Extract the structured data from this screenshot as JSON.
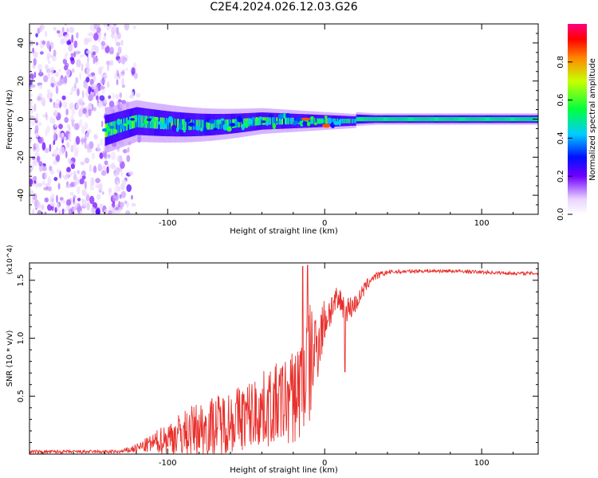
{
  "title": "C2E4.2024.026.12.03.G26",
  "chart_data": [
    {
      "type": "heatmap",
      "title": "",
      "xlabel": "Height of straight line (km)",
      "ylabel": "Frequency (Hz)",
      "xlim": [
        -188,
        136
      ],
      "ylim": [
        -50,
        50
      ],
      "x_ticks": [
        -100,
        0,
        100
      ],
      "x_tick_labels": [
        "-100",
        "0",
        "100"
      ],
      "y_ticks": [
        -40,
        -20,
        0,
        20,
        40
      ],
      "y_tick_labels": [
        "-40",
        "-20",
        "0",
        "20",
        "40"
      ],
      "colorbar": {
        "label": "Normalized spectral amplitude",
        "range": [
          0,
          1
        ],
        "ticks": [
          0,
          0.2,
          0.4,
          0.6,
          0.8
        ],
        "tick_labels": [
          "0.0",
          "0.2",
          "0.4",
          "0.6",
          "0.8"
        ]
      },
      "regions": {
        "noise_scatter": {
          "x": [
            -188,
            -118
          ],
          "freq": [
            -50,
            50
          ],
          "amplitude": [
            0.05,
            0.2
          ]
        },
        "signal_band": {
          "x": [
            -140,
            136
          ],
          "freq_center": 0,
          "freq_halfwidth": [
            8,
            2
          ],
          "core_amplitude": 0.45
        },
        "stable_line": {
          "x": [
            20,
            136
          ],
          "freq": 0,
          "amplitude": 0.5
        },
        "dip": {
          "x": 1,
          "freq": -3.5
        }
      },
      "grid": false
    },
    {
      "type": "line",
      "title": "",
      "xlabel": "Height of straight line (km)",
      "ylabel": "SNR (10 * v/v)",
      "y_scale_label": "(x10^4)",
      "xlim": [
        -188,
        136
      ],
      "ylim": [
        0,
        1.65
      ],
      "x_ticks": [
        -100,
        0,
        100
      ],
      "x_tick_labels": [
        "-100",
        "0",
        "100"
      ],
      "y_ticks": [
        0.5,
        1.0,
        1.5
      ],
      "y_tick_labels": [
        "0.5",
        "1.0",
        "1.5"
      ],
      "series": [
        {
          "color": "#e8302c",
          "envelope": {
            "x": [
              -188,
              -150,
              -130,
              -120,
              -110,
              -100,
              -90,
              -80,
              -70,
              -60,
              -50,
              -40,
              -30,
              -20,
              -15,
              -10,
              -5,
              0,
              5,
              10,
              15,
              20,
              25,
              30,
              40,
              60,
              80,
              100,
              120,
              136
            ],
            "mean": [
              0.02,
              0.02,
              0.02,
              0.05,
              0.09,
              0.14,
              0.18,
              0.22,
              0.25,
              0.29,
              0.33,
              0.38,
              0.43,
              0.49,
              0.6,
              0.75,
              0.95,
              1.15,
              1.28,
              1.32,
              1.25,
              1.3,
              1.42,
              1.52,
              1.57,
              1.58,
              1.58,
              1.57,
              1.56,
              1.56
            ],
            "spread": [
              0.015,
              0.015,
              0.015,
              0.04,
              0.08,
              0.15,
              0.2,
              0.24,
              0.26,
              0.28,
              0.3,
              0.33,
              0.36,
              0.42,
              0.5,
              0.55,
              0.35,
              0.2,
              0.15,
              0.12,
              0.12,
              0.08,
              0.06,
              0.04,
              0.02,
              0.015,
              0.015,
              0.015,
              0.015,
              0.015
            ]
          },
          "spikes": [
            {
              "x": -14,
              "y": 1.62
            },
            {
              "x": -11,
              "y": 1.63
            },
            {
              "x": 13,
              "y": 0.71
            }
          ]
        }
      ]
    }
  ]
}
